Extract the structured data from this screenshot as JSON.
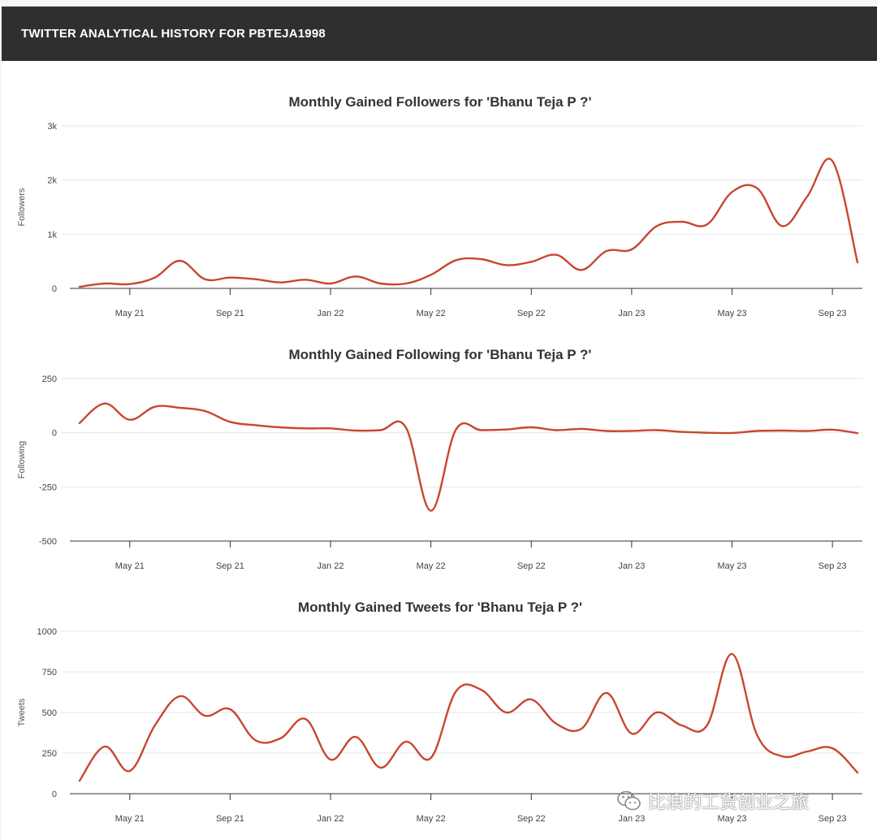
{
  "header": {
    "title": "TWITTER ANALYTICAL HISTORY FOR PBTEJA1998"
  },
  "watermark": {
    "text": "比浪的工货创业之旅",
    "icon": "wechat-icon"
  },
  "colors": {
    "series": "#c8462f",
    "header_bg": "#2f2f2f"
  },
  "chart_data": [
    {
      "type": "line",
      "title": "Monthly Gained Followers for 'Bhanu Teja P ?'",
      "xlabel": "",
      "ylabel": "Followers",
      "x_ticks": [
        "May 21",
        "Sep 21",
        "Jan 22",
        "May 22",
        "Sep 22",
        "Jan 23",
        "May 23",
        "Sep 23"
      ],
      "y_ticks": [
        "0",
        "1k",
        "2k",
        "3k"
      ],
      "y_tick_values": [
        0,
        1000,
        2000,
        3000
      ],
      "ylim": [
        0,
        3000
      ],
      "x": [
        "2021-03",
        "2021-04",
        "2021-05",
        "2021-06",
        "2021-07",
        "2021-08",
        "2021-09",
        "2021-10",
        "2021-11",
        "2021-12",
        "2022-01",
        "2022-02",
        "2022-03",
        "2022-04",
        "2022-05",
        "2022-06",
        "2022-07",
        "2022-08",
        "2022-09",
        "2022-10",
        "2022-11",
        "2022-12",
        "2023-01",
        "2023-02",
        "2023-03",
        "2023-04",
        "2023-05",
        "2023-06",
        "2023-07",
        "2023-08",
        "2023-09",
        "2023-10"
      ],
      "series": [
        {
          "values": [
            30,
            90,
            80,
            200,
            510,
            170,
            200,
            170,
            110,
            160,
            90,
            220,
            90,
            90,
            250,
            520,
            540,
            430,
            490,
            620,
            340,
            690,
            720,
            1150,
            1230,
            1180,
            1780,
            1850,
            1150,
            1700,
            2350,
            480
          ]
        }
      ],
      "grid": true
    },
    {
      "type": "line",
      "title": "Monthly Gained Following for 'Bhanu Teja P ?'",
      "xlabel": "",
      "ylabel": "Following",
      "x_ticks": [
        "May 21",
        "Sep 21",
        "Jan 22",
        "May 22",
        "Sep 22",
        "Jan 23",
        "May 23",
        "Sep 23"
      ],
      "y_ticks": [
        "-500",
        "-250",
        "0",
        "250"
      ],
      "y_tick_values": [
        -500,
        -250,
        0,
        250
      ],
      "ylim": [
        -500,
        250
      ],
      "x": [
        "2021-03",
        "2021-04",
        "2021-05",
        "2021-06",
        "2021-07",
        "2021-08",
        "2021-09",
        "2021-10",
        "2021-11",
        "2021-12",
        "2022-01",
        "2022-02",
        "2022-03",
        "2022-04",
        "2022-05",
        "2022-06",
        "2022-07",
        "2022-08",
        "2022-09",
        "2022-10",
        "2022-11",
        "2022-12",
        "2023-01",
        "2023-02",
        "2023-03",
        "2023-04",
        "2023-05",
        "2023-06",
        "2023-07",
        "2023-08",
        "2023-09",
        "2023-10"
      ],
      "series": [
        {
          "values": [
            45,
            135,
            60,
            120,
            115,
            100,
            50,
            35,
            25,
            20,
            20,
            10,
            12,
            25,
            -360,
            15,
            12,
            15,
            25,
            12,
            18,
            8,
            8,
            12,
            4,
            0,
            -1,
            8,
            10,
            8,
            14,
            -2
          ]
        }
      ],
      "grid": true
    },
    {
      "type": "line",
      "title": "Monthly Gained Tweets for 'Bhanu Teja P ?'",
      "xlabel": "",
      "ylabel": "Tweets",
      "x_ticks": [
        "May 21",
        "Sep 21",
        "Jan 22",
        "May 22",
        "Sep 22",
        "Jan 23",
        "May 23",
        "Sep 23"
      ],
      "y_ticks": [
        "0",
        "250",
        "500",
        "750",
        "1000"
      ],
      "y_tick_values": [
        0,
        250,
        500,
        750,
        1000
      ],
      "ylim": [
        0,
        1000
      ],
      "x": [
        "2021-03",
        "2021-04",
        "2021-05",
        "2021-06",
        "2021-07",
        "2021-08",
        "2021-09",
        "2021-10",
        "2021-11",
        "2021-12",
        "2022-01",
        "2022-02",
        "2022-03",
        "2022-04",
        "2022-05",
        "2022-06",
        "2022-07",
        "2022-08",
        "2022-09",
        "2022-10",
        "2022-11",
        "2022-12",
        "2023-01",
        "2023-02",
        "2023-03",
        "2023-04",
        "2023-05",
        "2023-06",
        "2023-07",
        "2023-08",
        "2023-09",
        "2023-10"
      ],
      "series": [
        {
          "values": [
            80,
            290,
            140,
            420,
            600,
            480,
            520,
            330,
            340,
            460,
            210,
            350,
            160,
            320,
            220,
            630,
            640,
            500,
            580,
            430,
            400,
            620,
            370,
            500,
            420,
            420,
            860,
            360,
            230,
            260,
            280,
            130
          ]
        }
      ],
      "grid": true
    }
  ]
}
